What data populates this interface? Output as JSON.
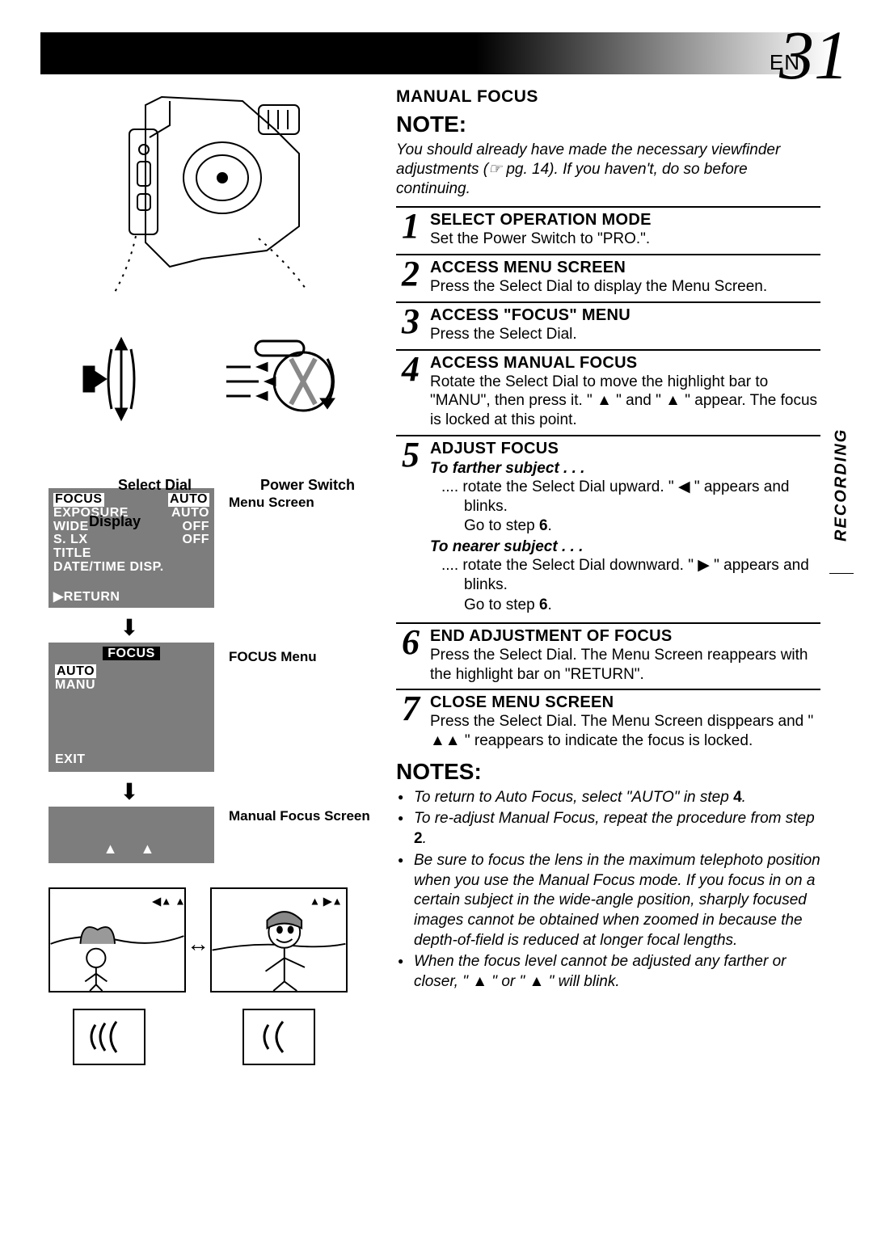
{
  "page": {
    "lang_prefix": "EN",
    "number": "31",
    "side_tab": "RECORDING"
  },
  "left": {
    "select_dial_label": "Select Dial",
    "power_switch_label": "Power Switch",
    "display_label": "Display",
    "menu_screen_label": "Menu Screen",
    "focus_menu_label": "FOCUS Menu",
    "manual_focus_label": "Manual Focus Screen",
    "menu_screen": {
      "rows": [
        {
          "l": "FOCUS",
          "r": "AUTO",
          "hl_l": true,
          "hl_r": true
        },
        {
          "l": "EXPOSURE",
          "r": "AUTO"
        },
        {
          "l": "WIDE",
          "r": "OFF"
        },
        {
          "l": "S. LX",
          "r": "OFF"
        },
        {
          "l": "TITLE",
          "r": ""
        },
        {
          "l": "DATE/TIME  DISP.",
          "r": ""
        }
      ],
      "return": "▶RETURN"
    },
    "focus_menu": {
      "title": "FOCUS",
      "items": [
        {
          "t": "AUTO",
          "hl": true
        },
        {
          "t": "MANU",
          "hl": false
        }
      ],
      "exit": "EXIT"
    }
  },
  "right": {
    "section_title": "MANUAL FOCUS",
    "note_heading": "NOTE:",
    "note_body": "You should already have made the necessary viewfinder adjustments (☞ pg. 14). If you haven't, do so before continuing.",
    "steps": [
      {
        "n": "1",
        "title": "SELECT OPERATION MODE",
        "body": "Set the Power Switch to \"PRO.\"."
      },
      {
        "n": "2",
        "title": "ACCESS MENU SCREEN",
        "body": "Press the Select Dial to display the Menu Screen."
      },
      {
        "n": "3",
        "title": "ACCESS \"FOCUS\" MENU",
        "body": "Press the Select Dial."
      },
      {
        "n": "4",
        "title": "ACCESS MANUAL FOCUS",
        "body": "Rotate the Select Dial to move the highlight bar to \"MANU\", then press it. \" ▲ \" and \" ▲ \" appear. The focus is locked at this point."
      },
      {
        "n": "5",
        "title": "ADJUST FOCUS",
        "sub1": "To farther subject . . .",
        "d1": ".... rotate the Select Dial upward. \" ◀ \" appears and blinks.",
        "g1": "Go to step 6.",
        "sub2": "To nearer subject . . .",
        "d2": ".... rotate the Select Dial downward. \" ▶ \" appears and blinks.",
        "g2": "Go to step 6."
      },
      {
        "n": "6",
        "title": "END ADJUSTMENT OF FOCUS",
        "body": "Press the Select Dial. The Menu Screen reappears with the highlight bar on \"RETURN\"."
      },
      {
        "n": "7",
        "title": "CLOSE MENU SCREEN",
        "body": "Press the Select Dial. The Menu Screen disppears and \" ▲▲ \" reappears to indicate the focus is locked."
      }
    ],
    "notes_heading": "NOTES:",
    "notes": [
      "To return to Auto Focus, select \"AUTO\" in step 4.",
      "To re-adjust Manual Focus, repeat the procedure from step 2.",
      "Be sure to focus the lens in the maximum telephoto position when you use the Manual Focus mode. If you focus in on a certain subject in the wide-angle position, sharply focused images cannot be obtained when zoomed in because the depth-of-field is reduced at longer focal lengths.",
      "When the focus level cannot be adjusted any farther or closer, \" ▲ \" or \" ▲ \" will blink."
    ]
  },
  "colors": {
    "screen_bg": "#7d7d7d"
  }
}
